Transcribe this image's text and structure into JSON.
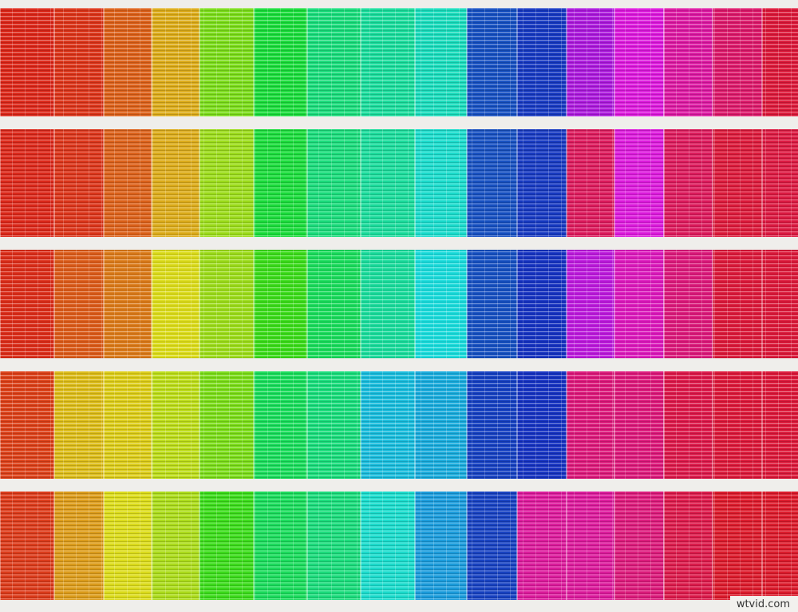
{
  "watermark": "wtvid.com"
}
